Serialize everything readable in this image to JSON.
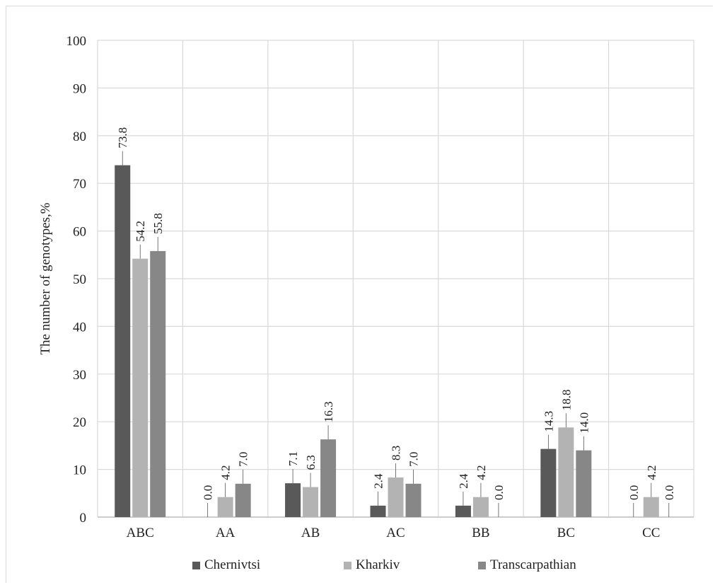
{
  "chart_data": {
    "type": "bar",
    "title": "",
    "xlabel": "",
    "ylabel": "The number of genotypes,%",
    "ylim": [
      0,
      100
    ],
    "yticks": [
      "0",
      "10",
      "20",
      "30",
      "40",
      "50",
      "60",
      "70",
      "80",
      "90",
      "100"
    ],
    "categories": [
      "ABC",
      "AA",
      "AB",
      "AC",
      "BB",
      "BC",
      "CC"
    ],
    "series": [
      {
        "name": "Chernivtsi",
        "color": "#595959",
        "values": [
          73.8,
          0.0,
          7.1,
          2.4,
          2.4,
          14.3,
          0.0
        ],
        "labels": [
          "73.8",
          "0.0",
          "7.1",
          "2.4",
          "2.4",
          "14.3",
          "0.0"
        ]
      },
      {
        "name": "Kharkiv",
        "color": "#b3b3b3",
        "values": [
          54.2,
          4.2,
          6.3,
          8.3,
          4.2,
          18.8,
          4.2
        ],
        "labels": [
          "54.2",
          "4.2",
          "6.3",
          "8.3",
          "4.2",
          "18.8",
          "4.2"
        ]
      },
      {
        "name": "Transcarpathian",
        "color": "#878787",
        "values": [
          55.8,
          7.0,
          16.3,
          7.0,
          0.0,
          14.0,
          0.0
        ],
        "labels": [
          "55.8",
          "7.0",
          "16.3",
          "7.0",
          "0.0",
          "14.0",
          "0.0"
        ]
      }
    ],
    "grid": true,
    "legend_position": "bottom"
  }
}
